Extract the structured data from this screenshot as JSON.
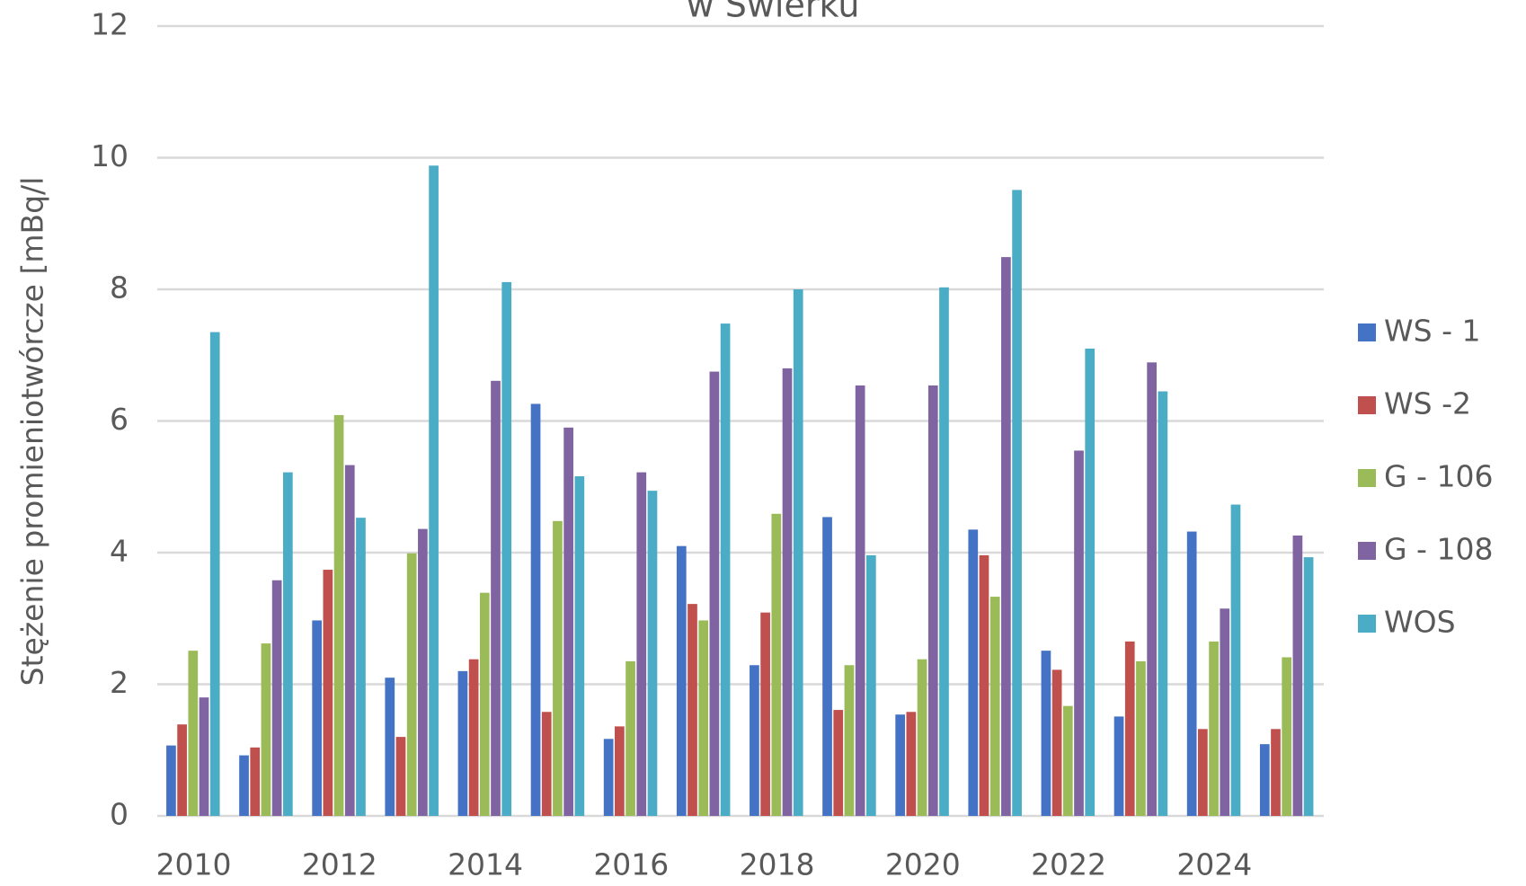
{
  "chart_data": {
    "type": "bar",
    "title": "w Świerku",
    "y_label": "Stężenie promieniotwórcze [mBq/l",
    "categories": [
      "2010",
      null,
      "2012",
      null,
      "2014",
      null,
      "2016",
      null,
      "2018",
      null,
      "2020",
      null,
      "2022",
      null,
      "2024",
      null
    ],
    "series": [
      {
        "name": "WS - 1",
        "color": "#4472c4",
        "values": [
          1.07,
          0.92,
          2.97,
          2.1,
          2.2,
          6.26,
          1.17,
          4.1,
          2.29,
          4.54,
          1.54,
          4.35,
          2.51,
          1.51,
          4.32,
          1.09
        ]
      },
      {
        "name": "WS -2",
        "color": "#c0504d",
        "values": [
          1.39,
          1.04,
          3.74,
          1.2,
          2.38,
          1.58,
          1.36,
          3.22,
          3.09,
          1.61,
          1.58,
          3.96,
          2.22,
          2.65,
          1.32,
          1.32
        ]
      },
      {
        "name": "G - 106",
        "color": "#9bbb59",
        "values": [
          2.51,
          2.62,
          6.09,
          3.99,
          3.39,
          4.48,
          2.35,
          2.97,
          4.59,
          2.29,
          2.38,
          3.33,
          1.67,
          2.35,
          2.65,
          2.41
        ]
      },
      {
        "name": "G - 108",
        "color": "#8064a2",
        "values": [
          1.8,
          3.58,
          5.33,
          4.36,
          6.61,
          5.9,
          5.22,
          6.75,
          6.8,
          6.54,
          6.54,
          8.49,
          5.55,
          6.89,
          3.15,
          4.26
        ]
      },
      {
        "name": "WOS",
        "color": "#4bacc6",
        "values": [
          7.35,
          5.22,
          4.53,
          9.88,
          8.11,
          5.16,
          4.94,
          7.48,
          8.0,
          3.96,
          8.03,
          9.51,
          7.1,
          6.45,
          4.73,
          3.93
        ]
      }
    ],
    "ylim": [
      0,
      12
    ],
    "yticks": [
      0,
      2,
      4,
      6,
      8,
      10,
      12
    ],
    "grid": true,
    "legend": "right"
  }
}
